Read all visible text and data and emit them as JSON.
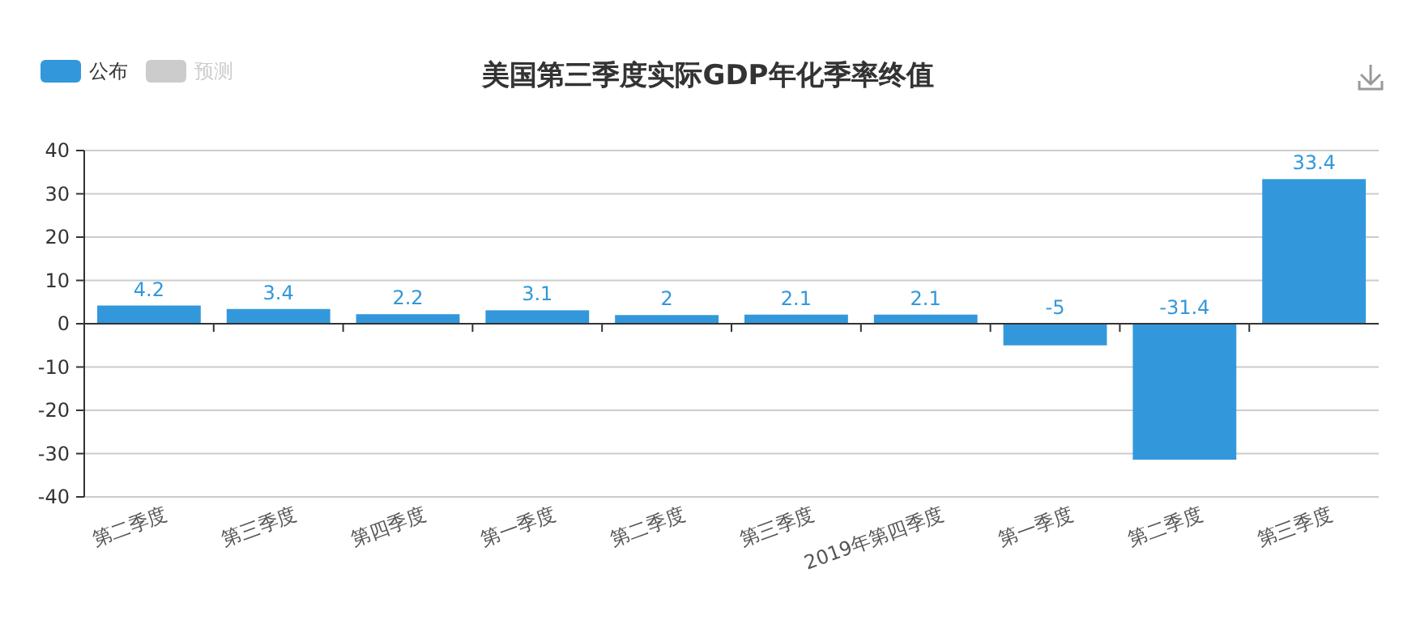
{
  "chart_data": {
    "type": "bar",
    "title": "美国第三季度实际GDP年化季率终值",
    "categories": [
      "第二季度",
      "第三季度",
      "第四季度",
      "第一季度",
      "第二季度",
      "第三季度",
      "2019年第四季度",
      "第一季度",
      "第二季度",
      "第三季度"
    ],
    "series": [
      {
        "name": "公布",
        "color": "#3398db",
        "values": [
          4.2,
          3.4,
          2.2,
          3.1,
          2,
          2.1,
          2.1,
          -5,
          -31.4,
          33.4
        ]
      },
      {
        "name": "预测",
        "color": "#cccccc",
        "values": [
          null,
          null,
          null,
          null,
          null,
          null,
          null,
          null,
          null,
          null
        ]
      }
    ],
    "ylim": [
      -40,
      40
    ],
    "yticks": [
      -40,
      -30,
      -20,
      -10,
      0,
      10,
      20,
      30,
      40
    ],
    "grid": "y",
    "legend": "top left",
    "data_labels": true
  }
}
